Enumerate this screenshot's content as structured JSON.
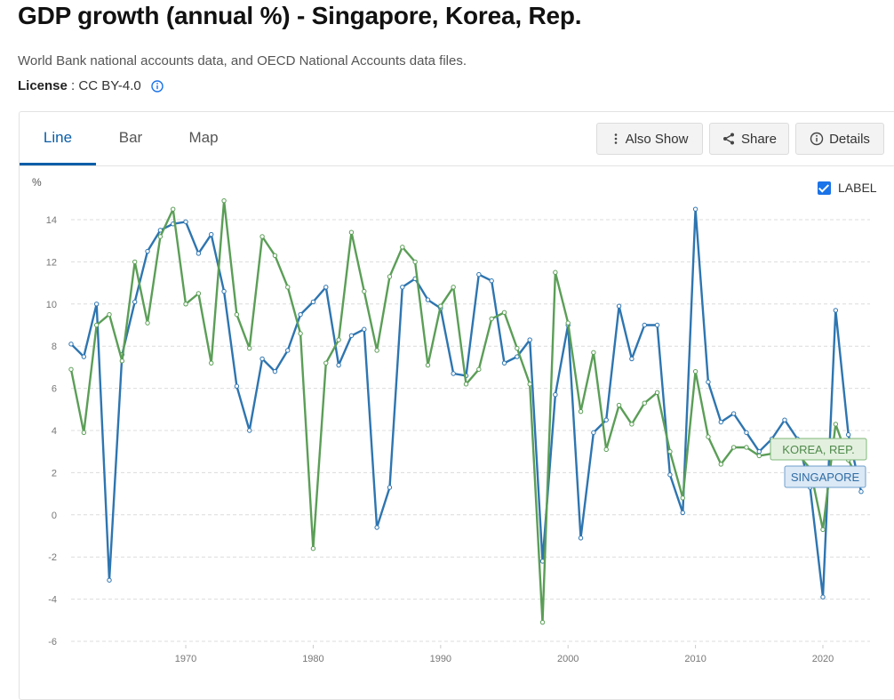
{
  "page": {
    "title": "GDP growth (annual %) - Singapore, Korea, Rep.",
    "source": "World Bank national accounts data, and OECD National Accounts data files.",
    "license_label": "License",
    "license_sep": " : ",
    "license_value": "CC BY-4.0"
  },
  "tabs": [
    {
      "label": "Line",
      "active": true
    },
    {
      "label": "Bar",
      "active": false
    },
    {
      "label": "Map",
      "active": false
    }
  ],
  "toolbar": {
    "also_show": "Also Show",
    "share": "Share",
    "details": "Details"
  },
  "label_toggle": {
    "label": "LABEL",
    "checked": true
  },
  "colors": {
    "singapore": "#2e75b0",
    "korea": "#5b9e57",
    "active_tab": "#0b5ea8"
  },
  "chart_data": {
    "type": "line",
    "unit_label": "%",
    "xlim": [
      1961,
      2023
    ],
    "ylim": [
      -6,
      14
    ],
    "x_ticks": [
      1970,
      1980,
      1990,
      2000,
      2010,
      2020
    ],
    "y_ticks": [
      -6,
      -4,
      -2,
      0,
      2,
      4,
      6,
      8,
      10,
      12,
      14
    ],
    "grid": true,
    "x": [
      1961,
      1962,
      1963,
      1964,
      1965,
      1966,
      1967,
      1968,
      1969,
      1970,
      1971,
      1972,
      1973,
      1974,
      1975,
      1976,
      1977,
      1978,
      1979,
      1980,
      1981,
      1982,
      1983,
      1984,
      1985,
      1986,
      1987,
      1988,
      1989,
      1990,
      1991,
      1992,
      1993,
      1994,
      1995,
      1996,
      1997,
      1998,
      1999,
      2000,
      2001,
      2002,
      2003,
      2004,
      2005,
      2006,
      2007,
      2008,
      2009,
      2010,
      2011,
      2012,
      2013,
      2014,
      2015,
      2016,
      2017,
      2018,
      2019,
      2020,
      2021,
      2022,
      2023
    ],
    "series": [
      {
        "name": "SINGAPORE",
        "color": "#2e75b0",
        "values": [
          8.1,
          7.5,
          10.0,
          -3.1,
          7.6,
          10.1,
          12.5,
          13.5,
          13.8,
          13.9,
          12.4,
          13.3,
          10.6,
          6.1,
          4.0,
          7.4,
          6.8,
          7.8,
          9.5,
          10.1,
          10.8,
          7.1,
          8.5,
          8.8,
          -0.6,
          1.3,
          10.8,
          11.2,
          10.2,
          9.8,
          6.7,
          6.6,
          11.4,
          11.1,
          7.2,
          7.5,
          8.3,
          -2.2,
          5.7,
          9.0,
          -1.1,
          3.9,
          4.5,
          9.9,
          7.4,
          9.0,
          9.0,
          1.9,
          0.1,
          14.5,
          6.3,
          4.4,
          4.8,
          3.9,
          3.0,
          3.6,
          4.5,
          3.6,
          1.3,
          -3.9,
          9.7,
          3.8,
          1.1
        ]
      },
      {
        "name": "KOREA, REP.",
        "color": "#5b9e57",
        "values": [
          6.9,
          3.9,
          9.0,
          9.5,
          7.3,
          12.0,
          9.1,
          13.2,
          14.5,
          10.0,
          10.5,
          7.2,
          14.9,
          9.5,
          7.9,
          13.2,
          12.3,
          10.8,
          8.6,
          -1.6,
          7.2,
          8.3,
          13.4,
          10.6,
          7.8,
          11.3,
          12.7,
          12.0,
          7.1,
          9.9,
          10.8,
          6.2,
          6.9,
          9.3,
          9.6,
          7.9,
          6.2,
          -5.1,
          11.5,
          9.1,
          4.9,
          7.7,
          3.1,
          5.2,
          4.3,
          5.3,
          5.8,
          3.0,
          0.8,
          6.8,
          3.7,
          2.4,
          3.2,
          3.2,
          2.8,
          2.9,
          3.2,
          2.9,
          2.2,
          -0.7,
          4.3,
          2.6,
          1.4
        ]
      }
    ]
  }
}
